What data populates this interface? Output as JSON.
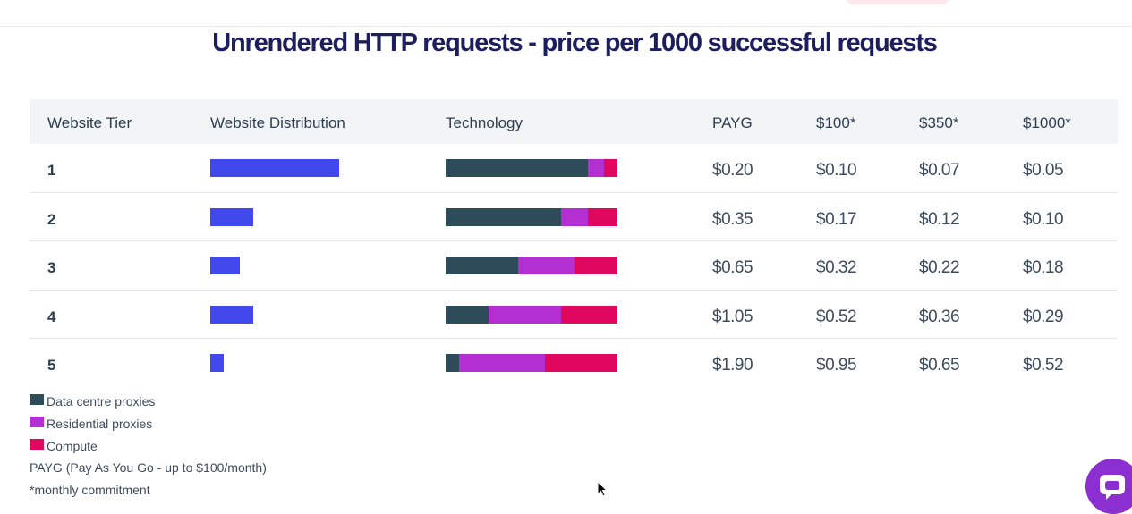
{
  "title": "Unrendered HTTP requests - price per 1000 successful requests",
  "colors": {
    "distribution": "#4149ed",
    "data_centre": "#2e4b5a",
    "residential": "#b42fd1",
    "compute": "#e0075f",
    "chat": "#8b2fd0"
  },
  "table": {
    "headers": {
      "tier": "Website Tier",
      "distribution": "Website Distribution",
      "technology": "Technology",
      "payg": "PAYG",
      "p100": "$100*",
      "p350": "$350*",
      "p1000": "$1000*"
    },
    "rows": [
      {
        "tier": "1",
        "distribution": 0.75,
        "tech": [
          0.83,
          0.09,
          0.08
        ],
        "payg": "$0.20",
        "p100": "$0.10",
        "p350": "$0.07",
        "p1000": "$0.05"
      },
      {
        "tier": "2",
        "distribution": 0.25,
        "tech": [
          0.67,
          0.16,
          0.17
        ],
        "payg": "$0.35",
        "p100": "$0.17",
        "p350": "$0.12",
        "p1000": "$0.10"
      },
      {
        "tier": "3",
        "distribution": 0.17,
        "tech": [
          0.42,
          0.33,
          0.25
        ],
        "payg": "$0.65",
        "p100": "$0.32",
        "p350": "$0.22",
        "p1000": "$0.18"
      },
      {
        "tier": "4",
        "distribution": 0.25,
        "tech": [
          0.25,
          0.42,
          0.33
        ],
        "payg": "$1.05",
        "p100": "$0.52",
        "p350": "$0.36",
        "p1000": "$0.29"
      },
      {
        "tier": "5",
        "distribution": 0.08,
        "tech": [
          0.08,
          0.5,
          0.42
        ],
        "payg": "$1.90",
        "p100": "$0.95",
        "p350": "$0.65",
        "p1000": "$0.52"
      }
    ]
  },
  "legend": {
    "items": [
      {
        "label": "Data centre proxies",
        "color": "#2e4b5a"
      },
      {
        "label": "Residential proxies",
        "color": "#b42fd1"
      },
      {
        "label": "Compute",
        "color": "#e0075f"
      }
    ],
    "notes": [
      "PAYG (Pay As You Go - up to $100/month)",
      "*monthly commitment"
    ]
  },
  "icons": {
    "chat": "chat-bubble-icon",
    "cursor": "mouse-pointer-icon"
  }
}
